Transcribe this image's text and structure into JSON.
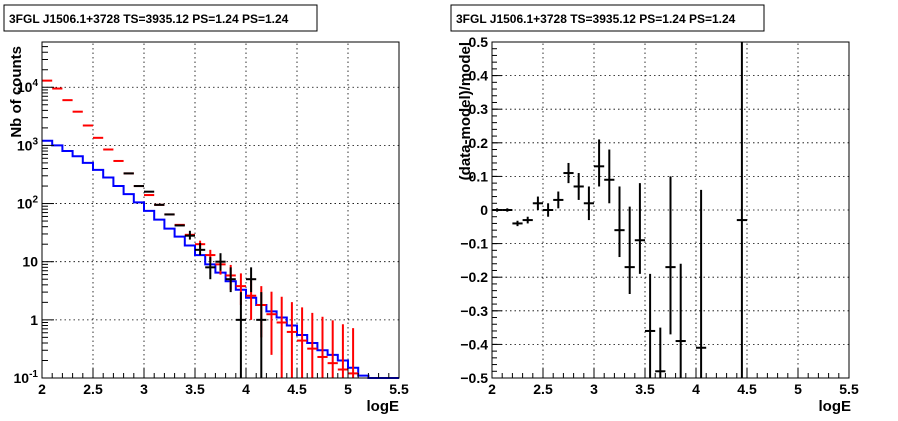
{
  "chart_data": [
    {
      "type": "line",
      "title": "3FGL J1506.1+3728 TS=3935.12 PS=1.24 PS=1.24",
      "xlabel": "logE",
      "ylabel": "Nb of counts",
      "xlim": [
        2,
        5.5
      ],
      "ylim": [
        0.1,
        60000
      ],
      "yscale": "log",
      "grid": true,
      "x_ticks": [
        "2",
        "2.5",
        "3",
        "3.5",
        "4",
        "4.5",
        "5",
        "5.5"
      ],
      "y_ticks": [
        "10^-1",
        "1",
        "10",
        "10^2",
        "10^3",
        "10^4"
      ],
      "bin_edges": [
        2.0,
        2.1,
        2.2,
        2.3,
        2.4,
        2.5,
        2.6,
        2.7,
        2.8,
        2.9,
        3.0,
        3.1,
        3.2,
        3.3,
        3.4,
        3.5,
        3.6,
        3.7,
        3.8,
        3.9,
        4.0,
        4.1,
        4.2,
        4.3,
        4.4,
        4.5,
        4.6,
        4.7,
        4.8,
        4.9,
        5.0,
        5.1,
        5.2,
        5.3,
        5.4,
        5.5
      ],
      "series": [
        {
          "name": "",
          "color": "#0000ff",
          "style": "histogram",
          "values": [
            1200,
            1000,
            800,
            650,
            500,
            380,
            280,
            200,
            145,
            105,
            75,
            53,
            37,
            27,
            19,
            13,
            9,
            6.5,
            4.6,
            3.3,
            2.4,
            1.8,
            1.4,
            1.1,
            0.8,
            0.55,
            0.4,
            0.3,
            0.25,
            0.2,
            0.15,
            0.11,
            0.1,
            0.1,
            0.1
          ]
        },
        {
          "name": "",
          "color": "#ff0000",
          "style": "error-bars",
          "x": [
            2.05,
            2.15,
            2.25,
            2.35,
            2.45,
            2.55,
            2.65,
            2.75,
            2.85,
            2.95,
            3.05,
            3.15,
            3.25,
            3.35,
            3.45,
            3.55,
            3.65,
            3.75,
            3.85,
            3.95,
            4.05,
            4.15,
            4.25,
            4.35,
            4.45,
            4.55,
            4.65,
            4.75,
            4.85,
            4.95,
            5.05
          ],
          "y": [
            13000,
            9500,
            6000,
            3800,
            2200,
            1350,
            850,
            540,
            330,
            200,
            140,
            95,
            65,
            43,
            29,
            20,
            13,
            9,
            5.8,
            3.8,
            2.6,
            1.8,
            1.25,
            0.9,
            0.62,
            0.44,
            0.32,
            0.23,
            0.18,
            0.14,
            0.12
          ],
          "yerr_low": [
            0,
            0,
            0,
            0,
            0,
            0,
            0,
            0,
            0,
            0,
            0,
            0,
            0,
            0,
            0,
            3,
            3,
            3,
            2.5,
            2,
            1.6,
            1.3,
            1.0,
            0.8,
            0.6,
            0.44,
            0.32,
            0.23,
            0.18,
            0.14,
            0.12
          ],
          "yerr_high": [
            0,
            0,
            0,
            0,
            0,
            0,
            0,
            0,
            0,
            0,
            0,
            0,
            0,
            0,
            0,
            3,
            3,
            3,
            3,
            2.5,
            2.2,
            2.0,
            1.8,
            1.6,
            1.4,
            1.2,
            1.0,
            0.9,
            0.8,
            0.7,
            0.6
          ]
        },
        {
          "name": "",
          "color": "#000000",
          "style": "error-bars",
          "x": [
            2.85,
            2.95,
            3.05,
            3.15,
            3.25,
            3.35,
            3.45,
            3.55,
            3.65,
            3.75,
            3.85,
            3.95,
            4.05,
            4.15
          ],
          "y": [
            330,
            200,
            160,
            95,
            65,
            42,
            28,
            16,
            8,
            10,
            5,
            1,
            5,
            1
          ],
          "yerr_low": [
            0,
            0,
            0,
            0,
            0,
            0,
            4,
            3,
            3,
            3,
            2,
            1,
            2,
            1
          ],
          "yerr_high": [
            0,
            0,
            0,
            0,
            0,
            0,
            6,
            5,
            4,
            4,
            3,
            2,
            3,
            2
          ]
        }
      ]
    },
    {
      "type": "scatter",
      "title": "3FGL J1506.1+3728 TS=3935.12 PS=1.24 PS=1.24",
      "xlabel": "logE",
      "ylabel": "(data-model)/model",
      "xlim": [
        2,
        5.5
      ],
      "ylim": [
        -0.5,
        0.5
      ],
      "grid": true,
      "x_ticks": [
        "2",
        "2.5",
        "3",
        "3.5",
        "4",
        "4.5",
        "5",
        "5.5"
      ],
      "y_ticks": [
        "−0.5",
        "−0.4",
        "−0.3",
        "−0.2",
        "−0.1",
        "0",
        "0.1",
        "0.2",
        "0.3",
        "0.4",
        "0.5"
      ],
      "series": [
        {
          "name": "",
          "color": "#000000",
          "style": "error-bars",
          "x": [
            2.05,
            2.15,
            2.25,
            2.35,
            2.45,
            2.55,
            2.65,
            2.75,
            2.85,
            2.95,
            3.05,
            3.15,
            3.25,
            3.35,
            3.45,
            3.55,
            3.65,
            3.75,
            3.85,
            4.05,
            4.45
          ],
          "y": [
            0.0,
            0.0,
            -0.04,
            -0.03,
            0.02,
            0.0,
            0.03,
            0.11,
            0.07,
            0.02,
            0.13,
            0.09,
            -0.06,
            -0.17,
            -0.09,
            -0.36,
            -0.48,
            -0.17,
            -0.39,
            -0.41,
            -0.03
          ],
          "yerr_low": [
            0.005,
            0.005,
            0.008,
            0.01,
            0.02,
            0.02,
            0.025,
            0.03,
            0.04,
            0.05,
            0.06,
            0.07,
            0.08,
            0.08,
            0.1,
            0.14,
            0.02,
            0.2,
            0.11,
            0.09,
            0.47
          ],
          "yerr_high": [
            0.005,
            0.005,
            0.008,
            0.01,
            0.02,
            0.02,
            0.025,
            0.03,
            0.04,
            0.05,
            0.08,
            0.09,
            0.13,
            0.18,
            0.17,
            0.17,
            0.13,
            0.27,
            0.23,
            0.47,
            0.53
          ]
        }
      ]
    }
  ]
}
